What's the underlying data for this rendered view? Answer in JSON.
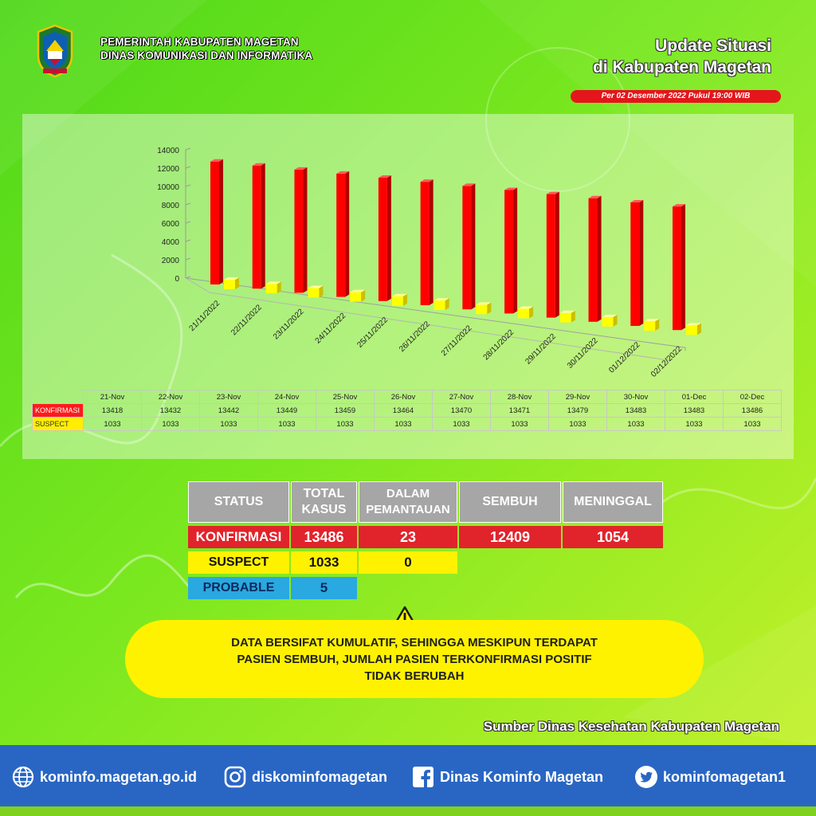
{
  "header": {
    "org_line1": "PEMERINTAH KABUPATEN MAGETAN",
    "org_line2": "DINAS KOMUNIKASI DAN INFORMATIKA",
    "update_line1": "Update Situasi",
    "update_line2": "di Kabupaten Magetan",
    "date_label": "Per 02 Desember 2022 Pukul 19:00 WIB"
  },
  "colors": {
    "konfirmasi": "#ff0000",
    "suspect": "#ffff00",
    "footer": "#2966c4",
    "note": "#fff200"
  },
  "chart_data": {
    "type": "bar",
    "style": "3d-clustered-column",
    "categories": [
      "21/11/2022",
      "22/11/2022",
      "23/11/2022",
      "24/11/2022",
      "25/11/2022",
      "26/11/2022",
      "27/11/2022",
      "28/11/2022",
      "29/11/2022",
      "30/11/2022",
      "01/12/2022",
      "02/12/2022"
    ],
    "ylim": [
      0,
      14000
    ],
    "yticks": [
      "0",
      "2000",
      "4000",
      "6000",
      "8000",
      "10000",
      "12000",
      "14000"
    ],
    "series": [
      {
        "name": "KONFIRMASI",
        "color": "#ff0000",
        "values": [
          13418,
          13432,
          13442,
          13449,
          13459,
          13464,
          13470,
          13471,
          13479,
          13483,
          13483,
          13486
        ]
      },
      {
        "name": "SUSPECT",
        "color": "#ffff00",
        "values": [
          1033,
          1033,
          1033,
          1033,
          1033,
          1033,
          1033,
          1033,
          1033,
          1033,
          1033,
          1033
        ]
      }
    ],
    "table": {
      "columns": [
        "21-Nov",
        "22-Nov",
        "23-Nov",
        "24-Nov",
        "25-Nov",
        "26-Nov",
        "27-Nov",
        "28-Nov",
        "29-Nov",
        "30-Nov",
        "01-Dec",
        "02-Dec"
      ],
      "rows": [
        {
          "label": "KONFIRMASI",
          "values": [
            "13418",
            "13432",
            "13442",
            "13449",
            "13459",
            "13464",
            "13470",
            "13471",
            "13479",
            "13483",
            "13483",
            "13486"
          ]
        },
        {
          "label": "SUSPECT",
          "values": [
            "1033",
            "1033",
            "1033",
            "1033",
            "1033",
            "1033",
            "1033",
            "1033",
            "1033",
            "1033",
            "1033",
            "1033"
          ]
        }
      ]
    }
  },
  "status_table": {
    "headers": {
      "status": "STATUS",
      "total_line1": "TOTAL",
      "total_line2": "KASUS",
      "dalam_line1": "DALAM",
      "dalam_line2": "PEMANTAUAN",
      "sembuh": "SEMBUH",
      "meninggal": "MENINGGAL"
    },
    "konfirmasi": {
      "label": "KONFIRMASI",
      "total": "13486",
      "dalam": "23",
      "sembuh": "12409",
      "meninggal": "1054"
    },
    "suspect": {
      "label": "SUSPECT",
      "total": "1033",
      "dalam": "0"
    },
    "probable": {
      "label": "PROBABLE",
      "total": "5"
    }
  },
  "note": {
    "line1": "DATA BERSIFAT KUMULATIF, SEHINGGA MESKIPUN TERDAPAT",
    "line2": "PASIEN SEMBUH, JUMLAH PASIEN TERKONFIRMASI POSITIF",
    "line3": "TIDAK BERUBAH"
  },
  "source": "Sumber Dinas Kesehatan Kabupaten Magetan",
  "footer": {
    "website": "kominfo.magetan.go.id",
    "instagram": "diskominfomagetan",
    "facebook": "Dinas Kominfo Magetan",
    "twitter": "kominfomagetan1"
  }
}
